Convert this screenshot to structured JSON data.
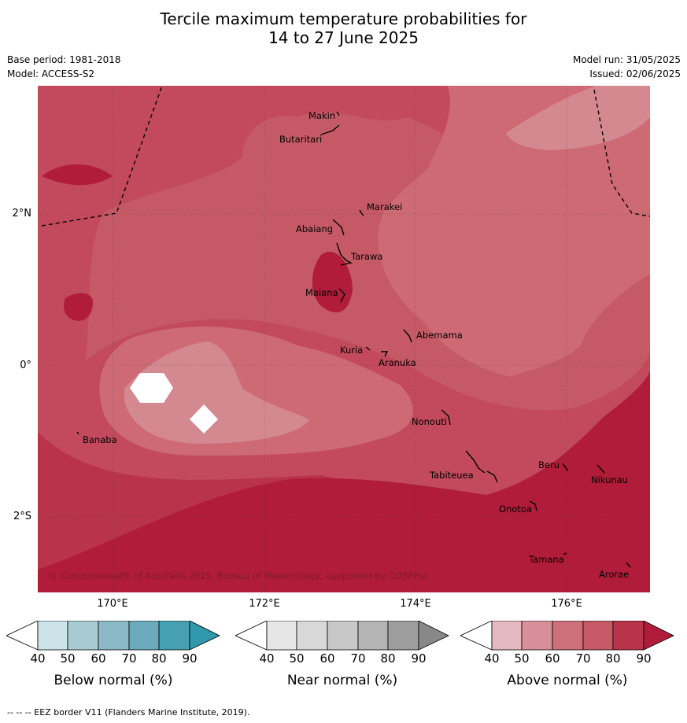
{
  "header": {
    "title_line1": "Tercile maximum temperature probabilities for",
    "title_line2": "14 to 27 June 2025",
    "base_period": "Base period: 1981-2018",
    "model": "Model: ACCESS-S2",
    "model_run": "Model run: 31/05/2025",
    "issued": "Issued: 02/06/2025"
  },
  "map": {
    "latitude_labels": [
      "2°N",
      "0°",
      "2°S"
    ],
    "longitude_labels": [
      "170°E",
      "172°E",
      "174°E",
      "176°E"
    ],
    "islands": [
      "Makin",
      "Butaritari",
      "Marakei",
      "Abaiang",
      "Tarawa",
      "Maiana",
      "Abemama",
      "Kuria",
      "Aranuka",
      "Banaba",
      "Nonouti",
      "Beru",
      "Nikunau",
      "Tabiteuea",
      "Onotoa",
      "Tamana",
      "Arorae"
    ],
    "copyright": "© Commonwealth of Australia 2025, Bureau of Meteorology, supported by COSPPac"
  },
  "colorbars": [
    {
      "label": "Below normal (%)",
      "ticks": [
        "40",
        "50",
        "60",
        "70",
        "80",
        "90"
      ],
      "colors": [
        "#ffffff",
        "#cde3ea",
        "#a8cad3",
        "#8cb9c6",
        "#6aaabb",
        "#45a0b1",
        "#2f98ab"
      ]
    },
    {
      "label": "Near normal (%)",
      "ticks": [
        "40",
        "50",
        "60",
        "70",
        "80",
        "90"
      ],
      "colors": [
        "#ffffff",
        "#e6e6e6",
        "#d8d8d8",
        "#c8c8c8",
        "#b4b4b4",
        "#9e9e9e",
        "#888888"
      ]
    },
    {
      "label": "Above normal (%)",
      "ticks": [
        "40",
        "50",
        "60",
        "70",
        "80",
        "90"
      ],
      "colors": [
        "#ffffff",
        "#e3b8bf",
        "#d88f99",
        "#cd7079",
        "#c55a66",
        "#b9334b",
        "#b01c3a"
      ]
    }
  ],
  "footer": "--  --  -- EEZ border V11 (Flanders Marine Institute, 2019)."
}
